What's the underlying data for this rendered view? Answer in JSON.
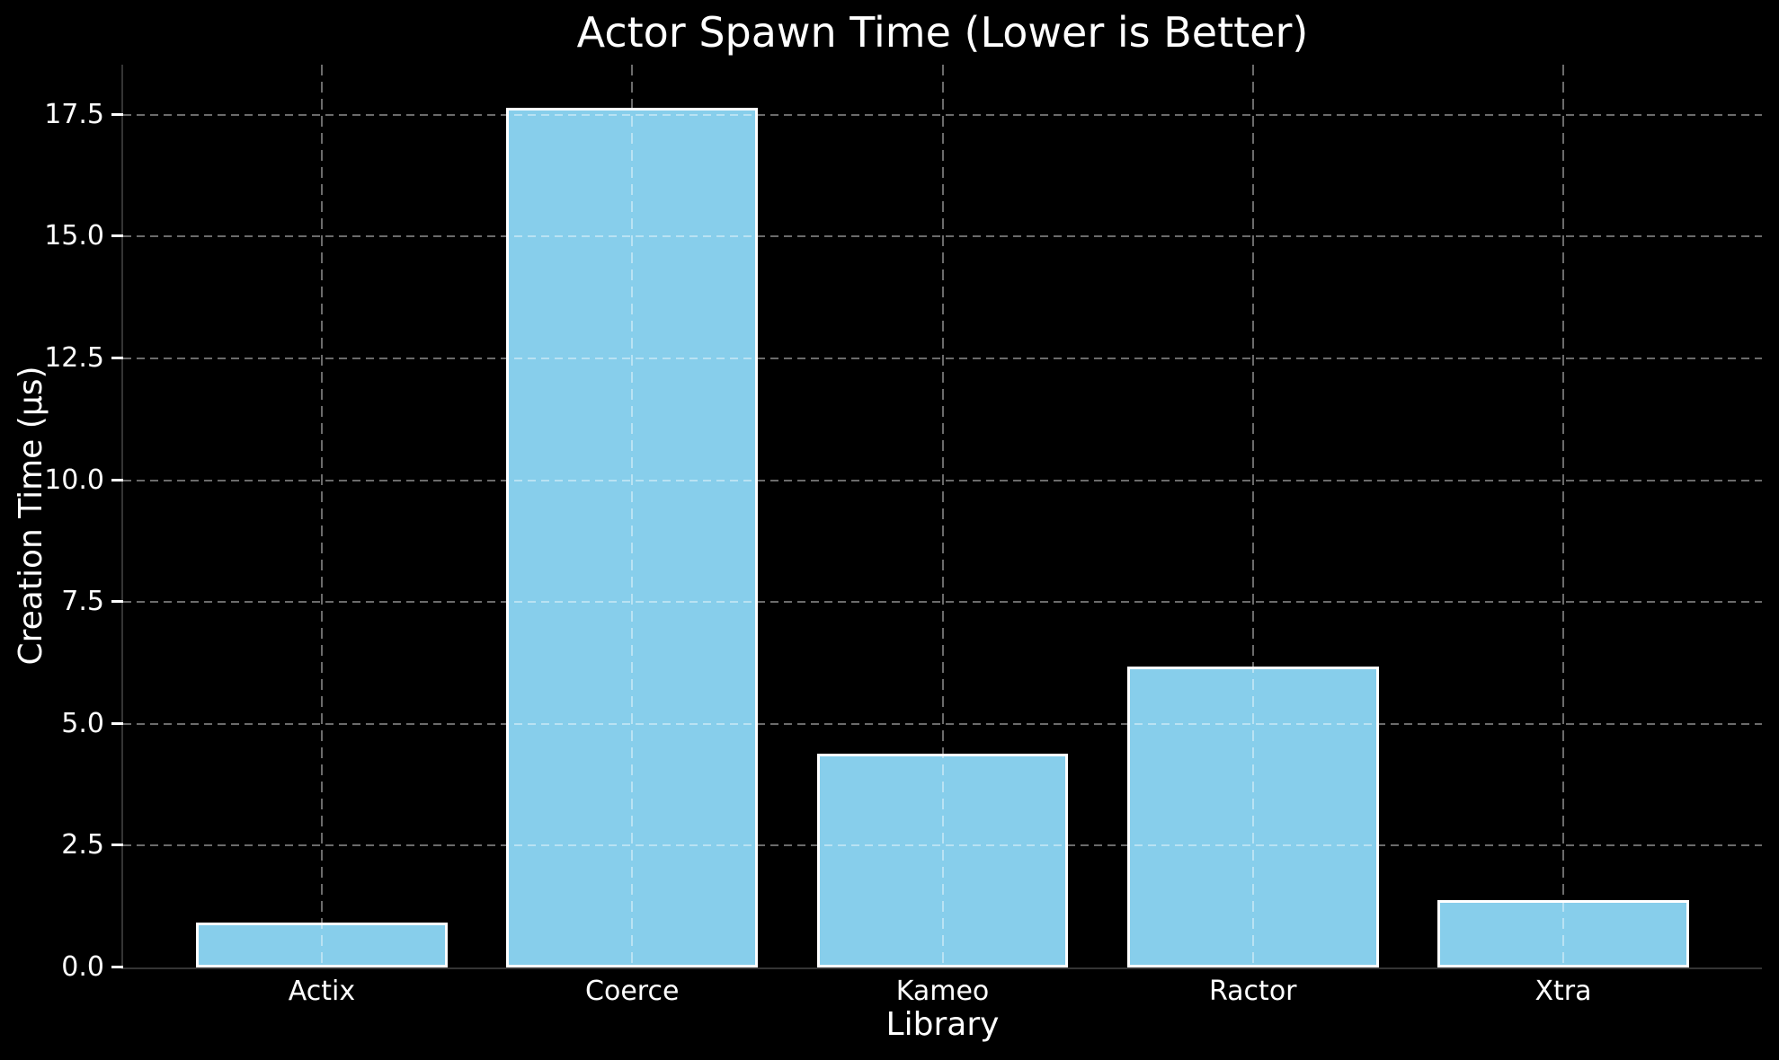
{
  "figure": {
    "background_color": "#000000",
    "text_color": "#ffffff"
  },
  "chart_data": {
    "type": "bar",
    "title": "Actor Spawn Time (Lower is Better)",
    "xlabel": "Library",
    "ylabel": "Creation Time (µs)",
    "categories": [
      "Actix",
      "Coerce",
      "Kameo",
      "Ractor",
      "Xtra"
    ],
    "values": [
      0.93,
      17.65,
      4.38,
      6.17,
      1.39
    ],
    "ylim": [
      0,
      18.53
    ],
    "xlim": [
      -0.64,
      4.64
    ],
    "yticks": [
      0.0,
      2.5,
      5.0,
      7.5,
      10.0,
      12.5,
      15.0,
      17.5
    ],
    "ytick_labels": [
      "0.0",
      "2.5",
      "5.0",
      "7.5",
      "10.0",
      "12.5",
      "15.0",
      "17.5"
    ],
    "bar_width_data_units": 0.81,
    "grid": "on",
    "grid_line_style": "dashed",
    "grid_over_bars": true,
    "legend": "none",
    "colors": {
      "bar_fill": "#87CEEB",
      "bar_edge": "#ffffff",
      "background": "#000000",
      "grid": "rgba(255,255,255,0.42)",
      "spine": "#343434",
      "tick_mark": "#ffffff",
      "text": "#ffffff"
    }
  }
}
